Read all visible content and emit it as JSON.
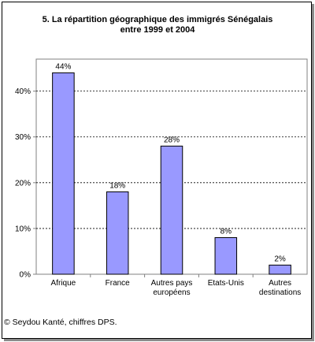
{
  "title_lines": [
    "5.  La répartition géographique des immigrés Sénégalais",
    "entre 1999 et 2004"
  ],
  "source": "© Seydou Kanté, chiffres DPS.",
  "colors": {
    "bar_fill": "#9999ff",
    "bar_stroke": "#000000",
    "gridline": "#000000",
    "plot_border": "#808080"
  },
  "chart_data": {
    "type": "bar",
    "title": "5.  La répartition géographique des immigrés Sénégalais entre 1999 et 2004",
    "categories": [
      [
        "Afrique"
      ],
      [
        "France"
      ],
      [
        "Autres pays",
        "européens"
      ],
      [
        "Etats-Unis"
      ],
      [
        "Autres",
        "destinations"
      ]
    ],
    "values": [
      44,
      18,
      28,
      8,
      2
    ],
    "value_labels": [
      "44%",
      "18%",
      "28%",
      "8%",
      "2%"
    ],
    "yticks": [
      0,
      10,
      20,
      30,
      40
    ],
    "ytick_labels": [
      "0%",
      "10%",
      "20%",
      "30%",
      "40%"
    ],
    "ylim": [
      0,
      47
    ],
    "grid": "horizontal dashed",
    "legend": "none",
    "xlabel": "",
    "ylabel": ""
  }
}
